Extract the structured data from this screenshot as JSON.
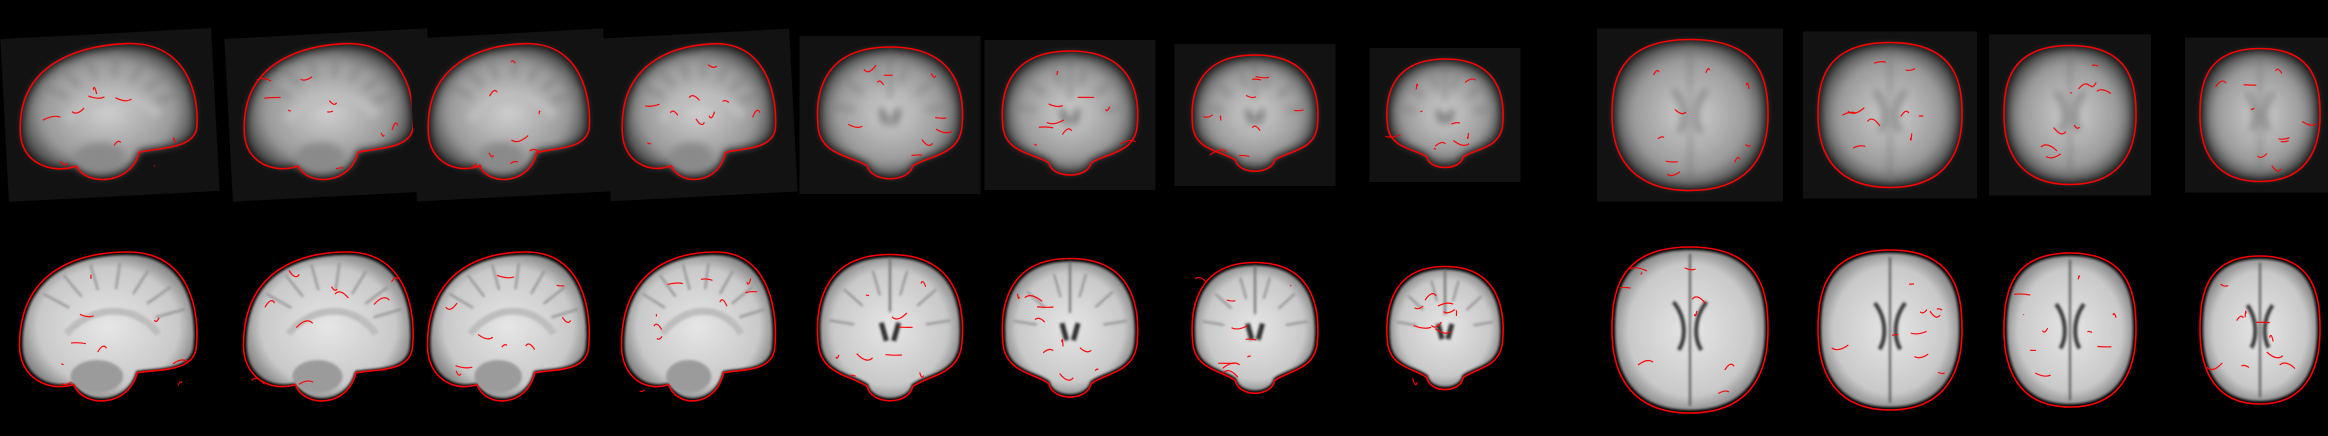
{
  "figure": {
    "background": "#000000",
    "overlay_color": "#ff0000",
    "rows": [
      {
        "name": "functional-row",
        "modality": "functional",
        "tone": "grayscale-blurry"
      },
      {
        "name": "anatomical-row",
        "modality": "anatomical",
        "tone": "grayscale-sharp"
      }
    ],
    "panels": [
      {
        "view": "sagittal"
      },
      {
        "view": "sagittal"
      },
      {
        "view": "sagittal"
      },
      {
        "view": "sagittal"
      },
      {
        "view": "coronal"
      },
      {
        "view": "coronal"
      },
      {
        "view": "coronal"
      },
      {
        "view": "coronal"
      },
      {
        "view": "axial"
      },
      {
        "view": "axial"
      },
      {
        "view": "axial"
      },
      {
        "view": "axial"
      }
    ]
  }
}
